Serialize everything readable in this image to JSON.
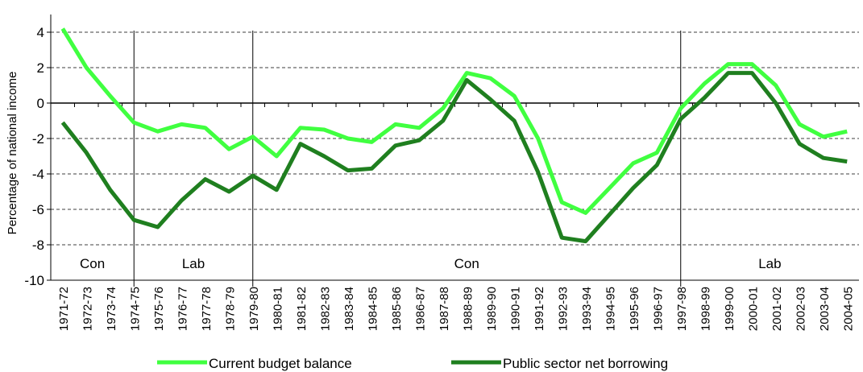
{
  "chart_data": {
    "type": "line",
    "y_label": "Percentage of national income",
    "categories": [
      "1971-72",
      "1972-73",
      "1973-74",
      "1974-75",
      "1975-76",
      "1976-77",
      "1977-78",
      "1978-79",
      "1979-80",
      "1980-81",
      "1981-82",
      "1982-83",
      "1983-84",
      "1984-85",
      "1985-86",
      "1986-87",
      "1987-88",
      "1988-89",
      "1989-90",
      "1990-91",
      "1991-92",
      "1992-93",
      "1993-94",
      "1994-95",
      "1995-96",
      "1996-97",
      "1997-98",
      "1998-99",
      "1999-00",
      "2000-01",
      "2001-02",
      "2002-03",
      "2003-04",
      "2004-05"
    ],
    "series": [
      {
        "name": "Current budget balance",
        "color": "#40ff40",
        "values": [
          4.2,
          2.0,
          0.4,
          -1.1,
          -1.6,
          -1.2,
          -1.4,
          -2.6,
          -1.9,
          -3.0,
          -1.4,
          -1.5,
          -2.0,
          -2.2,
          -1.2,
          -1.4,
          -0.3,
          1.7,
          1.4,
          0.4,
          -2.0,
          -5.6,
          -6.2,
          -4.8,
          -3.4,
          -2.8,
          -0.3,
          1.1,
          2.2,
          2.2,
          1.0,
          -1.2,
          -1.9,
          -1.6
        ]
      },
      {
        "name": "Public sector net borrowing",
        "color": "#1f7f1f",
        "values": [
          -1.1,
          -2.8,
          -4.9,
          -6.6,
          -7.0,
          -5.5,
          -4.3,
          -5.0,
          -4.1,
          -4.9,
          -2.3,
          -3.0,
          -3.8,
          -3.7,
          -2.4,
          -2.1,
          -1.0,
          1.3,
          0.2,
          -1.0,
          -3.9,
          -7.6,
          -7.8,
          -6.3,
          -4.8,
          -3.5,
          -0.9,
          0.3,
          1.7,
          1.7,
          0.0,
          -2.3,
          -3.1,
          -3.3
        ]
      }
    ],
    "periods": [
      {
        "label": "Con",
        "start": "1971-72",
        "end": "1973-74"
      },
      {
        "label": "Lab",
        "start": "1974-75",
        "end": "1978-79"
      },
      {
        "label": "Con",
        "start": "1979-80",
        "end": "1996-97"
      },
      {
        "label": "Lab",
        "start": "1997-98",
        "end": "2004-05"
      }
    ],
    "ylim": [
      -10,
      5
    ],
    "yticks": [
      -10,
      -8,
      -6,
      -4,
      -2,
      0,
      2,
      4
    ],
    "grid": true,
    "legend": "bottom"
  }
}
